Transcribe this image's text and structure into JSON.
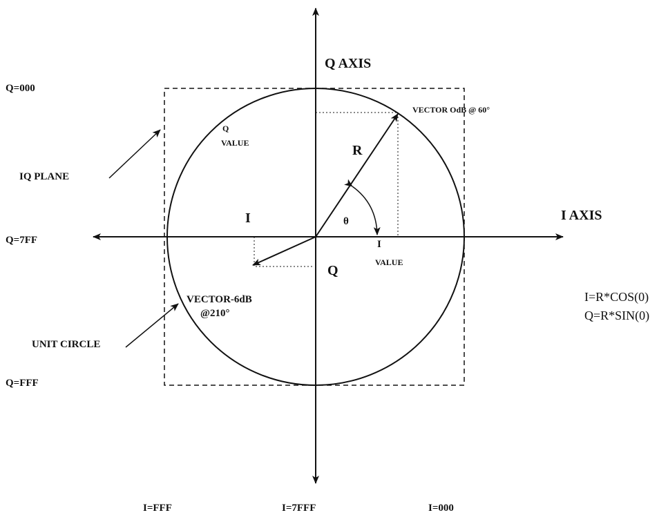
{
  "axes": {
    "q_axis": "Q AXIS",
    "i_axis": "I AXIS"
  },
  "q_levels": {
    "top": "Q=000",
    "middle": "Q=7FF",
    "bottom": "Q=FFF"
  },
  "i_levels": {
    "left": "I=FFF",
    "middle": "I=7FFF",
    "right": "I=000"
  },
  "vector_a": {
    "label": "VECTOR OdB @ 60°",
    "magnitude": "R",
    "angle": "θ"
  },
  "vector_b": {
    "label_line1": "VECTOR-6dB",
    "label_line2": "@210°"
  },
  "q_value": {
    "line1": "Q",
    "line2": "VALUE"
  },
  "i_value": {
    "line1": "I",
    "line2": "VALUE"
  },
  "component_i": "I",
  "component_q": "Q",
  "callouts": {
    "iq_plane": "IQ PLANE",
    "unit_circle": "UNIT CIRCLE"
  },
  "formulas": [
    "I=R*COS(0)",
    "Q=R*SIN(0)"
  ]
}
